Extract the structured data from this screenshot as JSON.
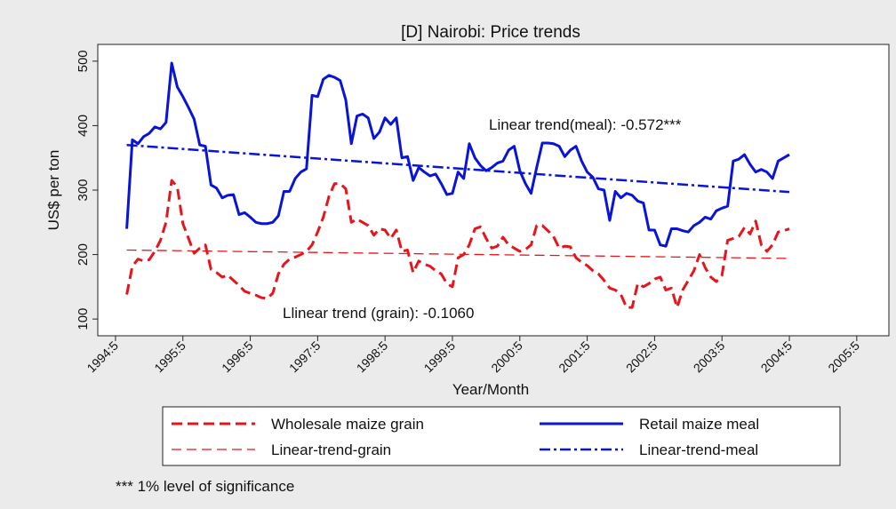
{
  "chart_data": {
    "type": "line",
    "title": "[D] Nairobi: Price trends",
    "x_label": "Year/Month",
    "y_label": "US$ per ton",
    "x": [
      1994.5,
      1994.583,
      1994.667,
      1994.75,
      1994.833,
      1994.917,
      1995,
      1995.083,
      1995.167,
      1995.25,
      1995.333,
      1995.417,
      1995.5,
      1995.583,
      1995.667,
      1995.75,
      1995.833,
      1995.917,
      1996,
      1996.083,
      1996.167,
      1996.25,
      1996.333,
      1996.417,
      1996.5,
      1996.583,
      1996.667,
      1996.75,
      1996.833,
      1996.917,
      1997,
      1997.083,
      1997.167,
      1997.25,
      1997.333,
      1997.417,
      1997.5,
      1997.583,
      1997.667,
      1997.75,
      1997.833,
      1997.917,
      1998,
      1998.083,
      1998.167,
      1998.25,
      1998.333,
      1998.417,
      1998.5,
      1998.583,
      1998.667,
      1998.75,
      1998.833,
      1998.917,
      1999,
      1999.083,
      1999.167,
      1999.25,
      1999.333,
      1999.417,
      1999.5,
      1999.583,
      1999.667,
      1999.75,
      1999.833,
      1999.917,
      2000,
      2000.083,
      2000.167,
      2000.25,
      2000.333,
      2000.417,
      2000.5,
      2000.583,
      2000.667,
      2000.75,
      2000.833,
      2000.917,
      2001,
      2001.083,
      2001.167,
      2001.25,
      2001.333,
      2001.417,
      2001.5,
      2001.583,
      2001.667,
      2001.75,
      2001.833,
      2001.917,
      2002,
      2002.083,
      2002.167,
      2002.25,
      2002.333,
      2002.417,
      2002.5,
      2002.583,
      2002.667,
      2002.75,
      2002.833,
      2002.917,
      2003,
      2003.083,
      2003.167,
      2003.25,
      2003.333,
      2003.417,
      2003.5,
      2003.583,
      2003.667,
      2003.75,
      2003.833,
      2003.917,
      2004,
      2004.083,
      2004.167,
      2004.25,
      2004.333
    ],
    "series": [
      {
        "name": "Wholesale maize grain",
        "color": "#e8141c",
        "line_style": "thick-dash",
        "values": [
          138,
          182,
          193,
          190,
          192,
          205,
          222,
          250,
          315,
          305,
          248,
          225,
          202,
          210,
          215,
          177,
          172,
          165,
          168,
          160,
          152,
          143,
          140,
          137,
          133,
          132,
          140,
          170,
          185,
          193,
          196,
          200,
          205,
          215,
          235,
          258,
          290,
          310,
          310,
          302,
          250,
          255,
          250,
          245,
          230,
          240,
          238,
          225,
          238,
          205,
          207,
          172,
          190,
          185,
          182,
          175,
          170,
          155,
          150,
          195,
          200,
          215,
          240,
          243,
          225,
          210,
          213,
          227,
          215,
          210,
          205,
          208,
          215,
          245,
          245,
          237,
          228,
          210,
          213,
          212,
          195,
          188,
          183,
          175,
          170,
          160,
          148,
          145,
          138,
          118,
          118,
          155,
          150,
          155,
          162,
          165,
          145,
          148,
          118,
          145,
          160,
          175,
          200,
          180,
          165,
          158,
          168,
          222,
          225,
          228,
          242,
          232,
          252,
          215,
          205,
          215,
          235,
          237,
          240
        ]
      },
      {
        "name": "Linear-trend-grain",
        "color": "#e8141c",
        "line_style": "thin-dash",
        "x": [
          1994.5,
          2004.333
        ],
        "values": [
          207,
          194
        ]
      },
      {
        "name": "Retail maize meal",
        "color": "#0a14d8",
        "line_style": "thick-solid",
        "values": [
          240,
          378,
          372,
          383,
          388,
          398,
          395,
          405,
          497,
          460,
          445,
          428,
          410,
          370,
          368,
          308,
          303,
          288,
          292,
          293,
          262,
          265,
          258,
          250,
          248,
          248,
          250,
          260,
          298,
          298,
          318,
          328,
          333,
          447,
          445,
          472,
          478,
          475,
          470,
          440,
          372,
          415,
          418,
          412,
          380,
          390,
          412,
          402,
          412,
          350,
          352,
          315,
          335,
          328,
          322,
          325,
          310,
          293,
          295,
          328,
          318,
          372,
          350,
          338,
          330,
          335,
          342,
          345,
          362,
          368,
          330,
          310,
          295,
          335,
          373,
          373,
          372,
          368,
          352,
          362,
          368,
          345,
          328,
          320,
          302,
          300,
          253,
          298,
          288,
          295,
          292,
          283,
          280,
          238,
          238,
          215,
          213,
          240,
          240,
          237,
          235,
          245,
          250,
          258,
          255,
          268,
          272,
          275,
          345,
          348,
          355,
          340,
          328,
          332,
          328,
          318,
          345,
          350,
          355
        ]
      },
      {
        "name": "Linear-trend-meal",
        "color": "#0a14d8",
        "line_style": "dash-dot",
        "x": [
          1994.5,
          2004.333
        ],
        "values": [
          370,
          297
        ]
      }
    ],
    "annotations": [
      "Linear trend(meal): -0.572***",
      "Llinear trend (grain): -0.1060"
    ],
    "footnote": "*** 1% level of significance",
    "xlim": [
      1994.07,
      2005.81
    ],
    "ylim": [
      74,
      526
    ],
    "xticks": [
      {
        "value": 1994.333,
        "label": "1994:5"
      },
      {
        "value": 1995.333,
        "label": "1995:5"
      },
      {
        "value": 1996.333,
        "label": "1996:5"
      },
      {
        "value": 1997.333,
        "label": "1997:5"
      },
      {
        "value": 1998.333,
        "label": "1998:5"
      },
      {
        "value": 1999.333,
        "label": "1999:5"
      },
      {
        "value": 2000.333,
        "label": "2000:5"
      },
      {
        "value": 2001.333,
        "label": "2001:5"
      },
      {
        "value": 2002.333,
        "label": "2002:5"
      },
      {
        "value": 2003.333,
        "label": "2003:5"
      },
      {
        "value": 2004.333,
        "label": "2004:5"
      },
      {
        "value": 2005.333,
        "label": "2005:5"
      }
    ],
    "yticks": [
      100,
      200,
      300,
      400,
      500
    ],
    "grid": false
  }
}
